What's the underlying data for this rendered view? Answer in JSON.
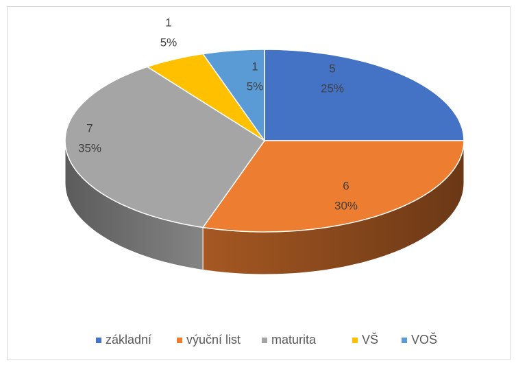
{
  "chart_data": {
    "type": "pie3d",
    "categories": [
      "základní",
      "výuční list",
      "maturita",
      "VŠ",
      "VOŠ"
    ],
    "values": [
      5,
      6,
      7,
      1,
      1
    ],
    "percent_labels": [
      "25%",
      "30%",
      "35%",
      "5%",
      "5%"
    ],
    "colors": [
      "#4472c4",
      "#ed7d31",
      "#a5a5a5",
      "#ffc000",
      "#5b9bd5"
    ],
    "legend": "bottom"
  }
}
